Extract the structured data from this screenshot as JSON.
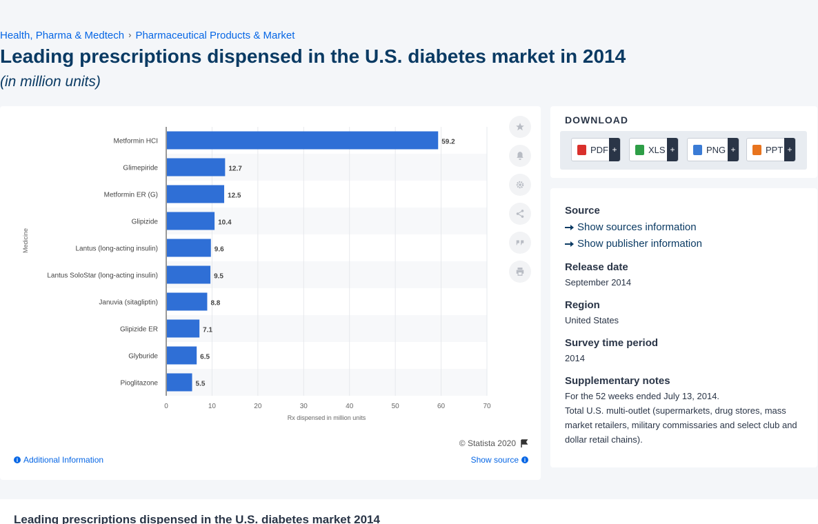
{
  "breadcrumb": {
    "items": [
      "Health, Pharma & Medtech",
      "Pharmaceutical Products & Market"
    ],
    "separator": "›"
  },
  "page": {
    "title": "Leading prescriptions dispensed in the U.S. diabetes market in 2014",
    "subtitle": "(in million units)",
    "bottom_title": "Leading prescriptions dispensed in the U.S. diabetes market 2014"
  },
  "chart_data": {
    "type": "bar",
    "orientation": "horizontal",
    "categories": [
      "Metformin HCI",
      "Glimepiride",
      "Metformin ER (G)",
      "Glipizide",
      "Lantus (long-acting insulin)",
      "Lantus SoloStar (long-acting insulin)",
      "Januvia (sitagliptin)",
      "Glipizide ER",
      "Glyburide",
      "Pioglitazone"
    ],
    "values": [
      59.2,
      12.7,
      12.5,
      10.4,
      9.6,
      9.5,
      8.8,
      7.1,
      6.5,
      5.5
    ],
    "value_labels": [
      "59.2",
      "12.7",
      "12.5",
      "10.4",
      "9.6",
      "9.5",
      "8.8",
      "7.1",
      "6.5",
      "5.5"
    ],
    "xlim": [
      0,
      70
    ],
    "xticks": [
      "0",
      "10",
      "20",
      "30",
      "40",
      "50",
      "60",
      "70"
    ],
    "xlabel": "Rx dispensed in million units",
    "ylabel": "Medicine",
    "bar_color": "#2f6fd6",
    "grid": true,
    "legend": "none"
  },
  "chart_footer": {
    "copyright": "© Statista 2020",
    "additional_info": "Additional Information",
    "show_source": "Show source"
  },
  "tools": [
    "star-icon",
    "bell-icon",
    "gear-icon",
    "share-icon",
    "quote-icon",
    "print-icon"
  ],
  "download": {
    "title": "DOWNLOAD",
    "buttons": [
      {
        "label": "PDF",
        "plus": "+",
        "color": "#d9302c"
      },
      {
        "label": "XLS",
        "plus": "+",
        "color": "#2e9e47"
      },
      {
        "label": "PNG",
        "plus": "+",
        "color": "#3a7bd5"
      },
      {
        "label": "PPT",
        "plus": "+",
        "color": "#e8741e"
      }
    ]
  },
  "meta": {
    "source_heading": "Source",
    "show_sources": "Show sources information",
    "show_publisher": "Show publisher information",
    "release_heading": "Release date",
    "release_value": "September 2014",
    "region_heading": "Region",
    "region_value": "United States",
    "survey_heading": "Survey time period",
    "survey_value": "2014",
    "notes_heading": "Supplementary notes",
    "notes_line1": "For the 52 weeks ended July 13, 2014.",
    "notes_line2": "Total U.S. multi-outlet (supermarkets, drug stores, mass market retailers, military commissaries and select club and dollar retail chains)."
  }
}
